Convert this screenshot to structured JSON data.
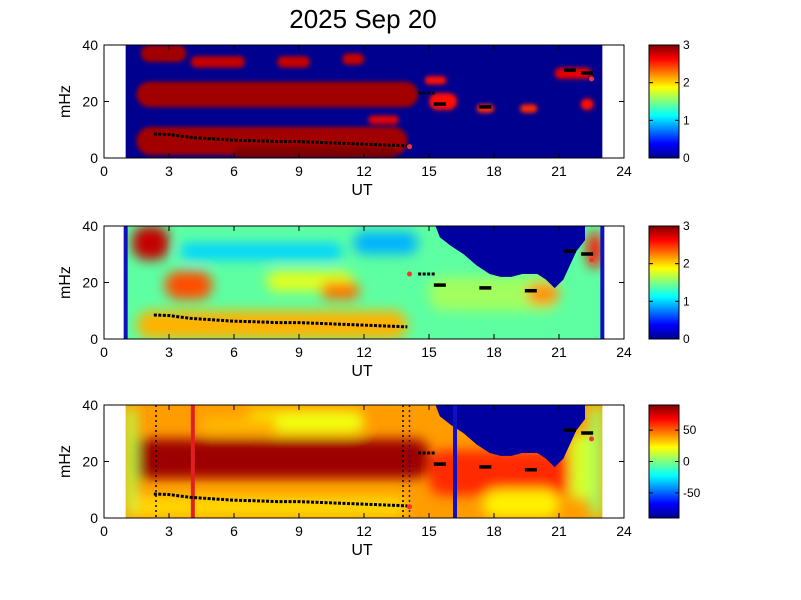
{
  "title": "2025 Sep 20",
  "colors": {
    "jet_stops": [
      "#00008f",
      "#0000ff",
      "#00ffff",
      "#ffff00",
      "#ff0000",
      "#800000"
    ],
    "trace_black": "#000000",
    "trace_red": "#ff3030",
    "marker_red": "#e02020",
    "marker_blue": "#1010c0"
  },
  "chart_data": [
    {
      "type": "heatmap",
      "panel": "top",
      "xlabel": "UT",
      "ylabel": "mHz",
      "xlim": [
        0,
        24
      ],
      "ylim": [
        0,
        40
      ],
      "xticks": [
        "0",
        "3",
        "6",
        "9",
        "12",
        "15",
        "18",
        "21",
        "24"
      ],
      "yticks": [
        "0",
        "20",
        "40"
      ],
      "data_extent_ut": [
        1,
        23
      ],
      "colorbar": {
        "range": [
          0,
          3
        ],
        "ticks": [
          "0",
          "1",
          "2",
          "3"
        ]
      },
      "background_value": 0,
      "blobs": [
        {
          "ut_start": 1.7,
          "ut_end": 3.8,
          "f_start": 34,
          "f_end": 40,
          "value": 2.9
        },
        {
          "ut_start": 1.5,
          "ut_end": 14.5,
          "f_start": 18,
          "f_end": 27,
          "value": 2.9
        },
        {
          "ut_start": 1.5,
          "ut_end": 14.0,
          "f_start": 1,
          "f_end": 11,
          "value": 2.9
        },
        {
          "ut_start": 6.0,
          "ut_end": 13.5,
          "f_start": 0,
          "f_end": 4,
          "value": 3.0
        },
        {
          "ut_start": 4.0,
          "ut_end": 6.5,
          "f_start": 32,
          "f_end": 36,
          "value": 2.8
        },
        {
          "ut_start": 8.0,
          "ut_end": 9.5,
          "f_start": 32,
          "f_end": 36,
          "value": 2.8
        },
        {
          "ut_start": 11.0,
          "ut_end": 12.0,
          "f_start": 33,
          "f_end": 37,
          "value": 2.8
        },
        {
          "ut_start": 12.2,
          "ut_end": 13.6,
          "f_start": 12,
          "f_end": 15,
          "value": 2.7
        },
        {
          "ut_start": 14.8,
          "ut_end": 15.8,
          "f_start": 26,
          "f_end": 29,
          "value": 2.6
        },
        {
          "ut_start": 15.0,
          "ut_end": 16.3,
          "f_start": 17,
          "f_end": 23,
          "value": 2.6
        },
        {
          "ut_start": 17.2,
          "ut_end": 18.0,
          "f_start": 16,
          "f_end": 19,
          "value": 2.5
        },
        {
          "ut_start": 19.2,
          "ut_end": 20.0,
          "f_start": 16,
          "f_end": 19,
          "value": 2.5
        },
        {
          "ut_start": 20.8,
          "ut_end": 22.5,
          "f_start": 28,
          "f_end": 32,
          "value": 2.7
        },
        {
          "ut_start": 22.0,
          "ut_end": 22.6,
          "f_start": 17,
          "f_end": 21,
          "value": 2.6
        }
      ],
      "trace_black": [
        [
          2.3,
          8.5
        ],
        [
          3.0,
          8.3
        ],
        [
          3.5,
          7.8
        ],
        [
          4.0,
          7.3
        ],
        [
          5.0,
          6.8
        ],
        [
          6.0,
          6.3
        ],
        [
          7.0,
          6.1
        ],
        [
          8.0,
          5.8
        ],
        [
          9.0,
          5.8
        ],
        [
          10.0,
          5.5
        ],
        [
          11.0,
          5.2
        ],
        [
          12.0,
          4.9
        ],
        [
          13.0,
          4.6
        ],
        [
          14.0,
          4.3
        ]
      ],
      "trace_upper": [
        [
          14.5,
          23
        ],
        [
          15.3,
          23
        ]
      ],
      "markers": [
        {
          "ut": 15.5,
          "f": 19
        },
        {
          "ut": 17.6,
          "f": 18
        },
        {
          "ut": 21.5,
          "f": 31
        },
        {
          "ut": 22.3,
          "f": 30
        }
      ],
      "red_markers": [
        {
          "ut": 14.1,
          "f": 4
        },
        {
          "ut": 22.5,
          "f": 28
        }
      ]
    },
    {
      "type": "heatmap",
      "panel": "middle",
      "xlabel": "UT",
      "ylabel": "mHz",
      "xlim": [
        0,
        24
      ],
      "ylim": [
        0,
        40
      ],
      "xticks": [
        "0",
        "3",
        "6",
        "9",
        "12",
        "15",
        "18",
        "21",
        "24"
      ],
      "yticks": [
        "0",
        "20",
        "40"
      ],
      "data_extent_ut": [
        1,
        23
      ],
      "colorbar": {
        "range": [
          0,
          3
        ],
        "ticks": [
          "0",
          "1",
          "2",
          "3"
        ]
      },
      "background_value": 1.4,
      "blobs": [
        {
          "ut_start": 1.3,
          "ut_end": 3.0,
          "f_start": 28,
          "f_end": 40,
          "value": 2.8
        },
        {
          "ut_start": 2.8,
          "ut_end": 5.0,
          "f_start": 14,
          "f_end": 24,
          "value": 2.4
        },
        {
          "ut_start": 1.5,
          "ut_end": 14.0,
          "f_start": 0,
          "f_end": 10,
          "value": 2.1
        },
        {
          "ut_start": 7.5,
          "ut_end": 11.5,
          "f_start": 17,
          "f_end": 24,
          "value": 1.8
        },
        {
          "ut_start": 10.0,
          "ut_end": 11.8,
          "f_start": 14,
          "f_end": 20,
          "value": 2.3
        },
        {
          "ut_start": 3.5,
          "ut_end": 11.0,
          "f_start": 28,
          "f_end": 34,
          "value": 1.0
        },
        {
          "ut_start": 11.5,
          "ut_end": 14.5,
          "f_start": 30,
          "f_end": 38,
          "value": 0.9
        },
        {
          "ut_start": 15.0,
          "ut_end": 21.0,
          "f_start": 10,
          "f_end": 22,
          "value": 1.6
        },
        {
          "ut_start": 19.5,
          "ut_end": 21.0,
          "f_start": 12,
          "f_end": 20,
          "value": 2.2
        },
        {
          "ut_start": 22.3,
          "ut_end": 23.0,
          "f_start": 25,
          "f_end": 38,
          "value": 2.6
        }
      ],
      "masked_region": [
        [
          15.3,
          40
        ],
        [
          15.5,
          36
        ],
        [
          16.0,
          33
        ],
        [
          16.6,
          30
        ],
        [
          17.2,
          26
        ],
        [
          17.8,
          23
        ],
        [
          18.3,
          22
        ],
        [
          18.8,
          22
        ],
        [
          19.3,
          23
        ],
        [
          20.0,
          23
        ],
        [
          20.4,
          21
        ],
        [
          20.8,
          18
        ],
        [
          21.2,
          21
        ],
        [
          21.5,
          26
        ],
        [
          21.8,
          31
        ],
        [
          22.2,
          35
        ],
        [
          22.2,
          40
        ]
      ],
      "trace_black": [
        [
          2.3,
          8.5
        ],
        [
          3.0,
          8.3
        ],
        [
          3.5,
          7.8
        ],
        [
          4.0,
          7.3
        ],
        [
          5.0,
          6.8
        ],
        [
          6.0,
          6.3
        ],
        [
          7.0,
          6.1
        ],
        [
          8.0,
          5.8
        ],
        [
          9.0,
          5.8
        ],
        [
          10.0,
          5.5
        ],
        [
          11.0,
          5.2
        ],
        [
          12.0,
          4.9
        ],
        [
          13.0,
          4.6
        ],
        [
          14.0,
          4.3
        ]
      ],
      "trace_upper": [
        [
          14.5,
          23
        ],
        [
          15.3,
          23
        ]
      ],
      "markers": [
        {
          "ut": 15.5,
          "f": 19
        },
        {
          "ut": 17.6,
          "f": 18
        },
        {
          "ut": 19.7,
          "f": 17
        },
        {
          "ut": 21.5,
          "f": 31
        },
        {
          "ut": 22.3,
          "f": 30
        }
      ],
      "red_markers": [
        {
          "ut": 14.1,
          "f": 23
        },
        {
          "ut": 22.5,
          "f": 28
        }
      ],
      "edge_bars_ut": [
        1.0,
        23.0
      ]
    },
    {
      "type": "heatmap",
      "panel": "bottom",
      "xlabel": "UT",
      "ylabel": "mHz",
      "xlim": [
        0,
        24
      ],
      "ylim": [
        0,
        40
      ],
      "xticks": [
        "0",
        "3",
        "6",
        "9",
        "12",
        "15",
        "18",
        "21",
        "24"
      ],
      "yticks": [
        "0",
        "20",
        "40"
      ],
      "data_extent_ut": [
        1,
        23
      ],
      "colorbar": {
        "range": [
          -90,
          90
        ],
        "ticks": [
          "50",
          "0",
          "-50"
        ],
        "tick_values": [
          50,
          0,
          -50
        ]
      },
      "background_value": 40,
      "blobs": [
        {
          "ut_start": 1.0,
          "ut_end": 15.0,
          "f_start": 14,
          "f_end": 28,
          "value": 85
        },
        {
          "ut_start": 1.0,
          "ut_end": 1.5,
          "f_start": 0,
          "f_end": 40,
          "value": 10
        },
        {
          "ut_start": 22.4,
          "ut_end": 23.0,
          "f_start": 0,
          "f_end": 40,
          "value": 5
        },
        {
          "ut_start": 6.5,
          "ut_end": 12.0,
          "f_start": 30,
          "f_end": 38,
          "value": 20
        },
        {
          "ut_start": 4.5,
          "ut_end": 8.0,
          "f_start": 30,
          "f_end": 36,
          "value": 35
        },
        {
          "ut_start": 1.3,
          "ut_end": 14.0,
          "f_start": 0,
          "f_end": 8,
          "value": 30
        },
        {
          "ut_start": 15.0,
          "ut_end": 21.5,
          "f_start": 8,
          "f_end": 24,
          "value": 60
        },
        {
          "ut_start": 17.5,
          "ut_end": 21.0,
          "f_start": 0,
          "f_end": 10,
          "value": 25
        },
        {
          "ut_start": 21.5,
          "ut_end": 22.5,
          "f_start": 6,
          "f_end": 30,
          "value": 15
        }
      ],
      "masked_region": [
        [
          15.3,
          40
        ],
        [
          15.5,
          36
        ],
        [
          16.0,
          33
        ],
        [
          16.6,
          30
        ],
        [
          17.2,
          26
        ],
        [
          17.8,
          23
        ],
        [
          18.3,
          22
        ],
        [
          18.8,
          22
        ],
        [
          19.3,
          23
        ],
        [
          20.0,
          23
        ],
        [
          20.4,
          21
        ],
        [
          20.8,
          18
        ],
        [
          21.2,
          21
        ],
        [
          21.5,
          26
        ],
        [
          21.8,
          31
        ],
        [
          22.2,
          35
        ],
        [
          22.2,
          40
        ]
      ],
      "trace_black": [
        [
          2.3,
          8.5
        ],
        [
          3.0,
          8.3
        ],
        [
          3.5,
          7.8
        ],
        [
          4.0,
          7.3
        ],
        [
          5.0,
          6.8
        ],
        [
          6.0,
          6.3
        ],
        [
          7.0,
          6.1
        ],
        [
          8.0,
          5.8
        ],
        [
          9.0,
          5.8
        ],
        [
          10.0,
          5.5
        ],
        [
          11.0,
          5.2
        ],
        [
          12.0,
          4.9
        ],
        [
          13.0,
          4.6
        ],
        [
          14.0,
          4.3
        ]
      ],
      "trace_upper": [
        [
          14.5,
          23
        ],
        [
          15.3,
          23
        ]
      ],
      "markers": [
        {
          "ut": 15.5,
          "f": 19
        },
        {
          "ut": 17.6,
          "f": 18
        },
        {
          "ut": 19.7,
          "f": 17
        },
        {
          "ut": 21.5,
          "f": 31
        },
        {
          "ut": 22.3,
          "f": 30
        }
      ],
      "red_markers": [
        {
          "ut": 14.1,
          "f": 4
        },
        {
          "ut": 22.5,
          "f": 28
        }
      ],
      "vertical_lines": [
        {
          "ut": 4.1,
          "color": "red",
          "style": "solid"
        },
        {
          "ut": 16.2,
          "color": "blue",
          "style": "solid"
        },
        {
          "ut": 2.4,
          "color": "black",
          "style": "dotted"
        },
        {
          "ut": 13.8,
          "color": "black",
          "style": "dotted"
        },
        {
          "ut": 14.1,
          "color": "blue",
          "style": "dotted"
        }
      ]
    }
  ]
}
